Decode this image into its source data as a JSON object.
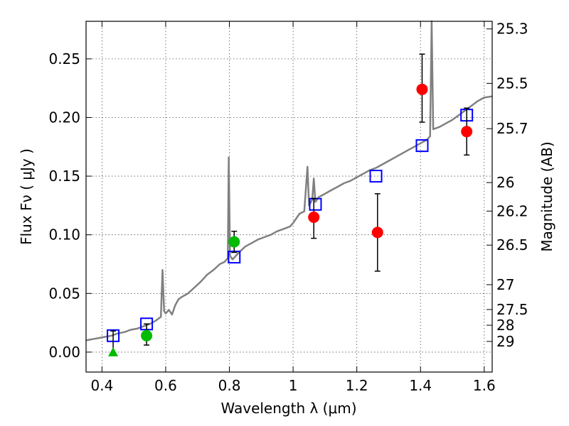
{
  "chart_data": {
    "type": "scatter",
    "xlabel": "Wavelength  λ (μm)",
    "ylabel": "Flux  Fν  ( μJy )",
    "ylabel_right": "Magnitude (AB)",
    "xlim": [
      0.35,
      1.625
    ],
    "ylim": [
      -0.017,
      0.282
    ],
    "x_ticks": [
      0.4,
      0.6,
      0.8,
      1.0,
      1.2,
      1.4,
      1.6
    ],
    "x_tick_labels": [
      "0.4",
      "0.6",
      "0.8",
      "1",
      "1.2",
      "1.4",
      "1.6"
    ],
    "y_ticks": [
      0.0,
      0.05,
      0.1,
      0.15,
      0.2,
      0.25
    ],
    "y_tick_labels": [
      "0.00",
      "0.05",
      "0.10",
      "0.15",
      "0.20",
      "0.25"
    ],
    "mag_ticks": [
      {
        "flux": 0.2755,
        "label": "25.3"
      },
      {
        "flux": 0.2291,
        "label": "25.5"
      },
      {
        "flux": 0.1905,
        "label": "25.7"
      },
      {
        "flux": 0.1445,
        "label": "26"
      },
      {
        "flux": 0.1202,
        "label": "26.2"
      },
      {
        "flux": 0.0912,
        "label": "26.5"
      },
      {
        "flux": 0.0575,
        "label": "27"
      },
      {
        "flux": 0.0363,
        "label": "27.5"
      },
      {
        "flux": 0.0229,
        "label": "28"
      },
      {
        "flux": 0.0091,
        "label": "29"
      }
    ],
    "grid": true,
    "series": [
      {
        "kind": "line",
        "color": "#808080",
        "points": [
          [
            0.35,
            0.01
          ],
          [
            0.37,
            0.011
          ],
          [
            0.39,
            0.012
          ],
          [
            0.41,
            0.013
          ],
          [
            0.43,
            0.014
          ],
          [
            0.45,
            0.016
          ],
          [
            0.47,
            0.017
          ],
          [
            0.49,
            0.019
          ],
          [
            0.51,
            0.02
          ],
          [
            0.53,
            0.022
          ],
          [
            0.55,
            0.024
          ],
          [
            0.57,
            0.027
          ],
          [
            0.585,
            0.03
          ],
          [
            0.59,
            0.07
          ],
          [
            0.595,
            0.035
          ],
          [
            0.6,
            0.033
          ],
          [
            0.61,
            0.036
          ],
          [
            0.62,
            0.032
          ],
          [
            0.63,
            0.04
          ],
          [
            0.64,
            0.045
          ],
          [
            0.65,
            0.047
          ],
          [
            0.67,
            0.05
          ],
          [
            0.69,
            0.055
          ],
          [
            0.71,
            0.06
          ],
          [
            0.73,
            0.066
          ],
          [
            0.75,
            0.07
          ],
          [
            0.77,
            0.075
          ],
          [
            0.785,
            0.077
          ],
          [
            0.795,
            0.08
          ],
          [
            0.798,
            0.166
          ],
          [
            0.802,
            0.082
          ],
          [
            0.81,
            0.079
          ],
          [
            0.83,
            0.085
          ],
          [
            0.85,
            0.09
          ],
          [
            0.87,
            0.093
          ],
          [
            0.89,
            0.096
          ],
          [
            0.91,
            0.098
          ],
          [
            0.93,
            0.1
          ],
          [
            0.95,
            0.103
          ],
          [
            0.97,
            0.105
          ],
          [
            0.99,
            0.107
          ],
          [
            1.0,
            0.11
          ],
          [
            1.02,
            0.118
          ],
          [
            1.035,
            0.12
          ],
          [
            1.045,
            0.158
          ],
          [
            1.05,
            0.125
          ],
          [
            1.06,
            0.13
          ],
          [
            1.065,
            0.148
          ],
          [
            1.07,
            0.128
          ],
          [
            1.08,
            0.132
          ],
          [
            1.1,
            0.135
          ],
          [
            1.12,
            0.138
          ],
          [
            1.14,
            0.141
          ],
          [
            1.16,
            0.144
          ],
          [
            1.18,
            0.146
          ],
          [
            1.2,
            0.149
          ],
          [
            1.22,
            0.152
          ],
          [
            1.24,
            0.155
          ],
          [
            1.26,
            0.157
          ],
          [
            1.28,
            0.16
          ],
          [
            1.3,
            0.163
          ],
          [
            1.32,
            0.166
          ],
          [
            1.34,
            0.169
          ],
          [
            1.36,
            0.172
          ],
          [
            1.38,
            0.175
          ],
          [
            1.4,
            0.178
          ],
          [
            1.42,
            0.181
          ],
          [
            1.43,
            0.184
          ],
          [
            1.435,
            0.282
          ],
          [
            1.44,
            0.19
          ],
          [
            1.46,
            0.192
          ],
          [
            1.48,
            0.195
          ],
          [
            1.5,
            0.198
          ],
          [
            1.52,
            0.202
          ],
          [
            1.54,
            0.206
          ],
          [
            1.56,
            0.21
          ],
          [
            1.58,
            0.214
          ],
          [
            1.6,
            0.217
          ],
          [
            1.625,
            0.218
          ]
        ]
      },
      {
        "kind": "squares",
        "color": "#0000ff",
        "points": [
          [
            0.435,
            0.014
          ],
          [
            0.54,
            0.024
          ],
          [
            0.815,
            0.081
          ],
          [
            1.07,
            0.126
          ],
          [
            1.26,
            0.15
          ],
          [
            1.405,
            0.176
          ],
          [
            1.545,
            0.202
          ]
        ]
      },
      {
        "kind": "circles",
        "color": "#00bb00",
        "points": [
          {
            "x": 0.54,
            "y": 0.014,
            "err_lo": 0.006,
            "err_hi": 0.024
          },
          {
            "x": 0.815,
            "y": 0.094,
            "err_lo": 0.085,
            "err_hi": 0.103
          }
        ]
      },
      {
        "kind": "circles",
        "color": "#ff0000",
        "points": [
          {
            "x": 1.065,
            "y": 0.115,
            "err_lo": 0.097,
            "err_hi": 0.131
          },
          {
            "x": 1.265,
            "y": 0.102,
            "err_lo": 0.069,
            "err_hi": 0.135
          },
          {
            "x": 1.405,
            "y": 0.224,
            "err_lo": 0.196,
            "err_hi": 0.254
          },
          {
            "x": 1.545,
            "y": 0.188,
            "err_lo": 0.168,
            "err_hi": 0.208
          }
        ]
      },
      {
        "kind": "upper_limit",
        "color": "#00bb00",
        "points": [
          {
            "x": 0.435,
            "y": 0.0,
            "err_hi": 0.018
          }
        ]
      }
    ]
  }
}
